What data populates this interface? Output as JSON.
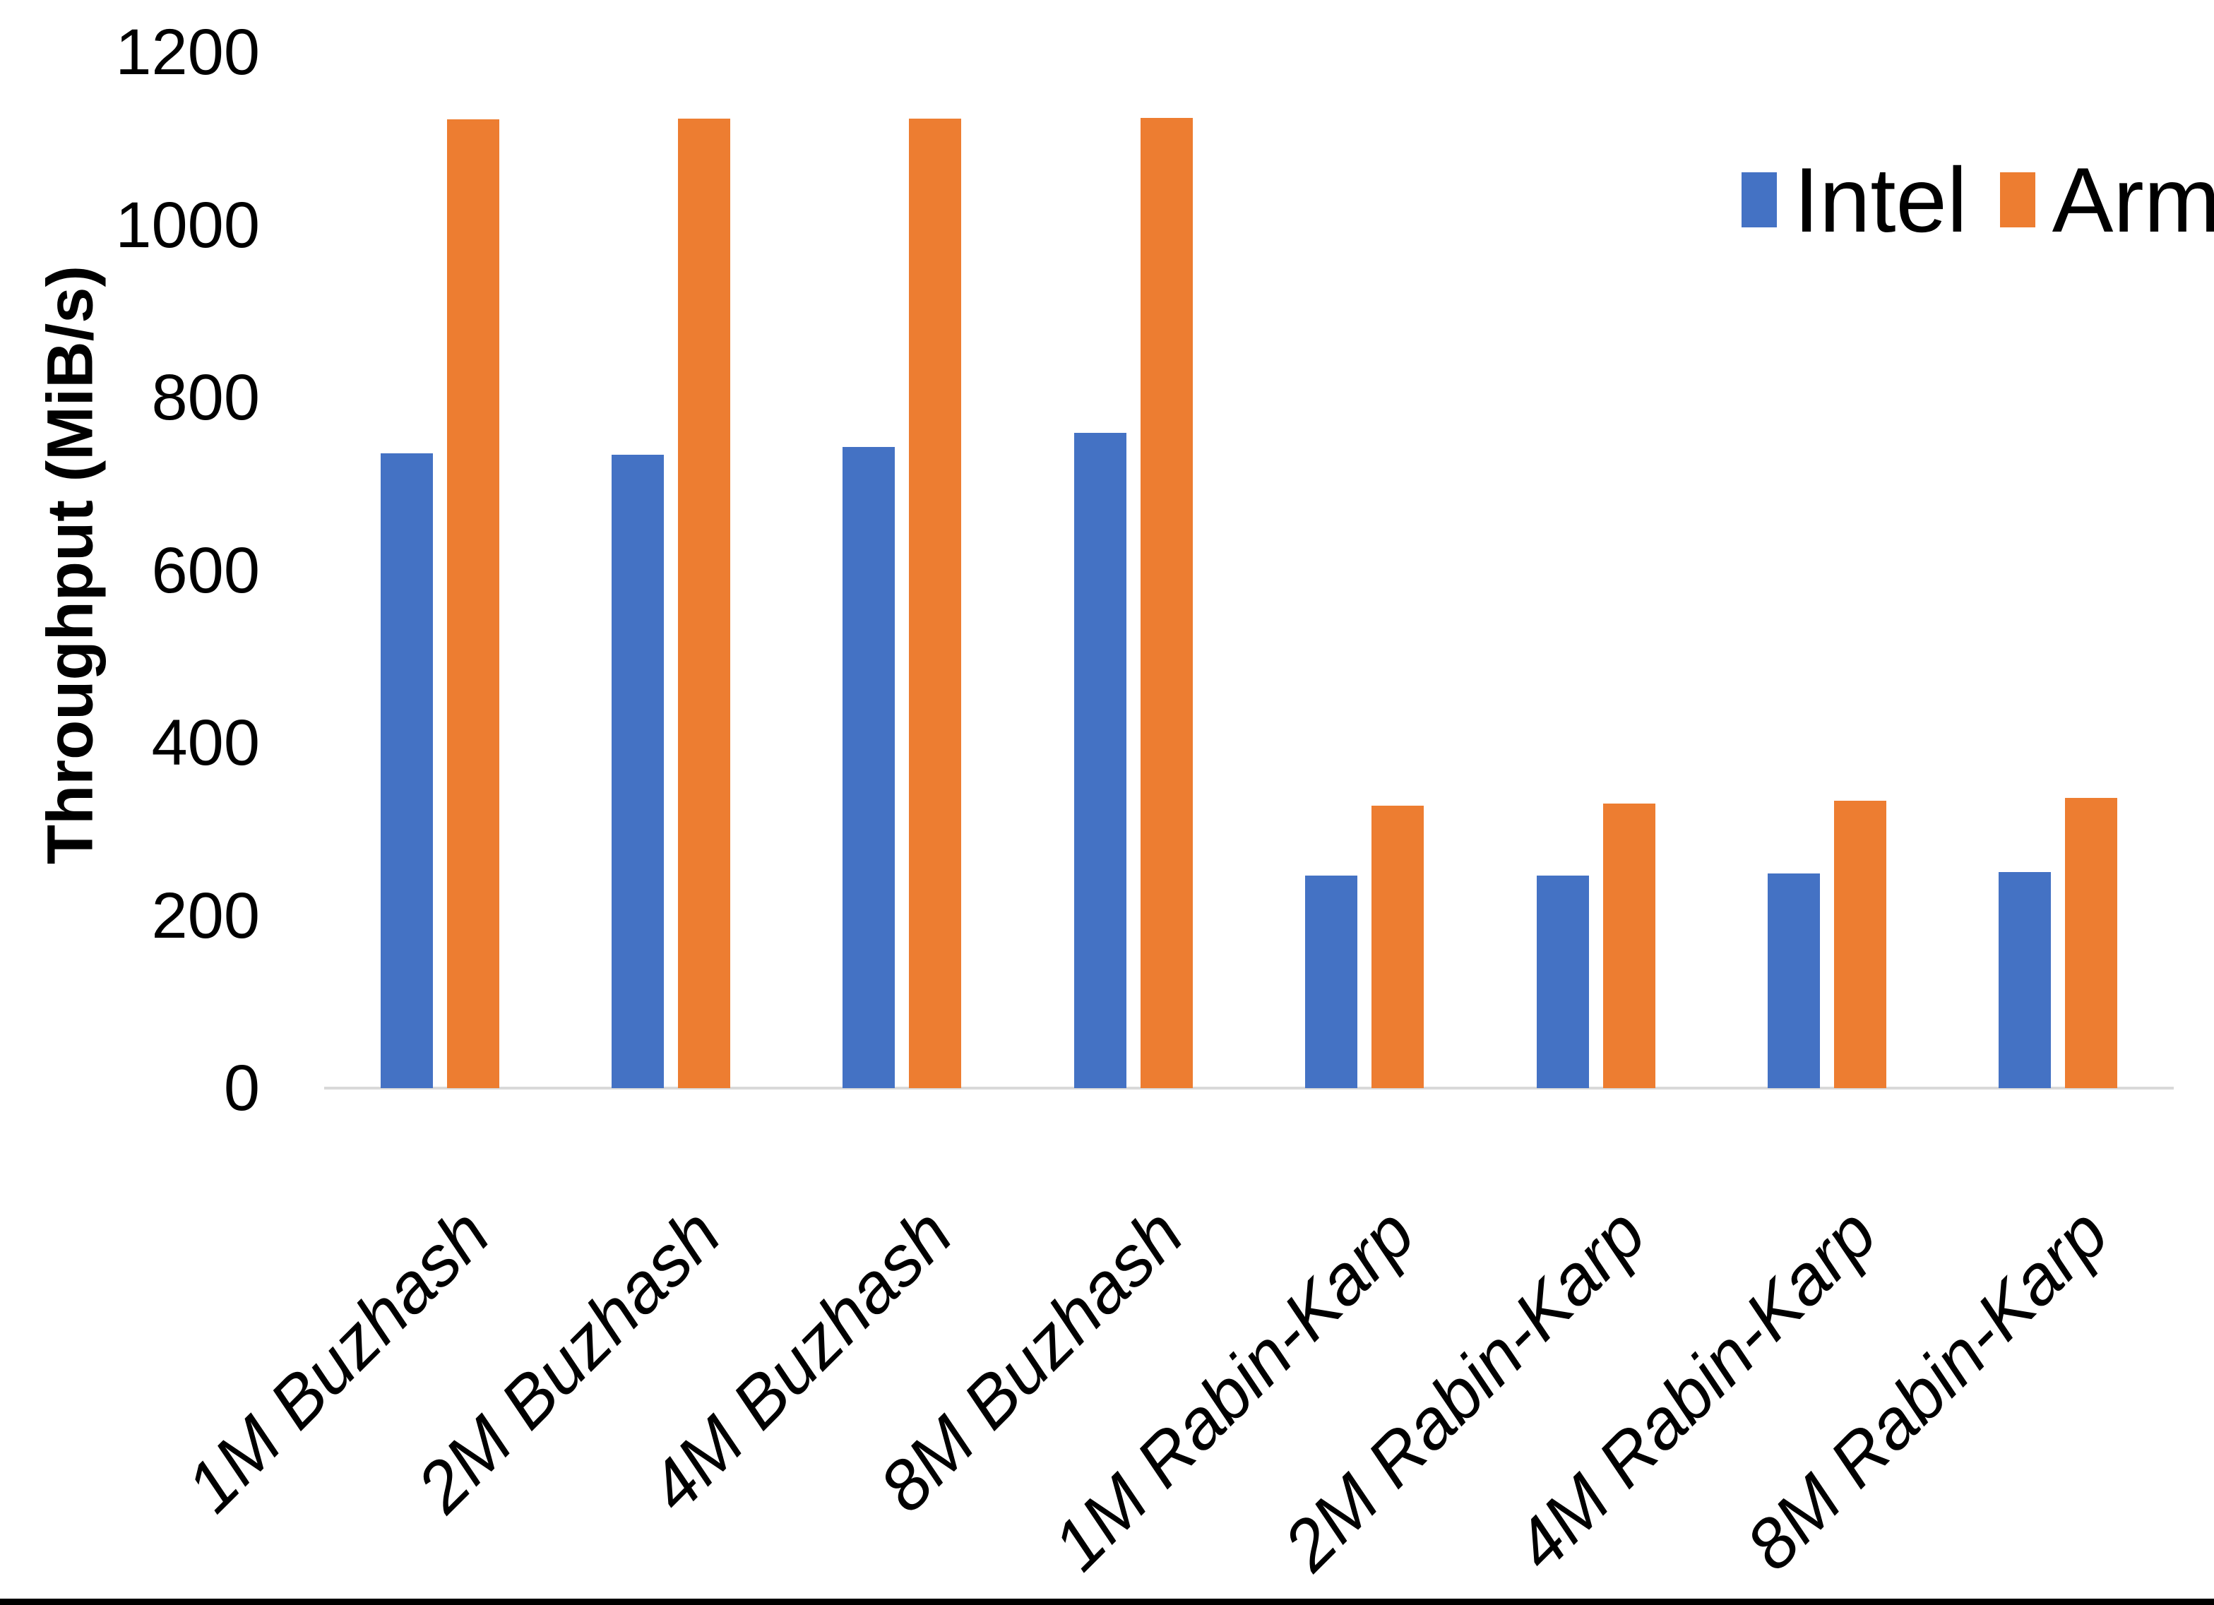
{
  "chart_data": {
    "type": "bar",
    "title": "",
    "xlabel": "",
    "ylabel": "Throughput (MiB/s)",
    "ylim": [
      0,
      1200
    ],
    "yticks": [
      0,
      200,
      400,
      600,
      800,
      1000,
      1200
    ],
    "grid": false,
    "legend_position": "top-right",
    "categories": [
      "1M Buzhash",
      "2M Buzhash",
      "4M Buzhash",
      "8M Buzhash",
      "1M Rabin-Karp",
      "2M Rabin-Karp",
      "4M Rabin-Karp",
      "8M Rabin-Karp"
    ],
    "series": [
      {
        "name": "Intel",
        "color": "#4472C4",
        "values": [
          735,
          734,
          743,
          759,
          246,
          246,
          249,
          250
        ]
      },
      {
        "name": "Arm",
        "color": "#ED7D31",
        "values": [
          1122,
          1123,
          1123,
          1124,
          327,
          330,
          333,
          336
        ]
      }
    ]
  },
  "colors": {
    "background": "#FFFFFF",
    "axis_line": "#D9D9D9",
    "text": "#000000",
    "bottom_bar": "#000000"
  }
}
